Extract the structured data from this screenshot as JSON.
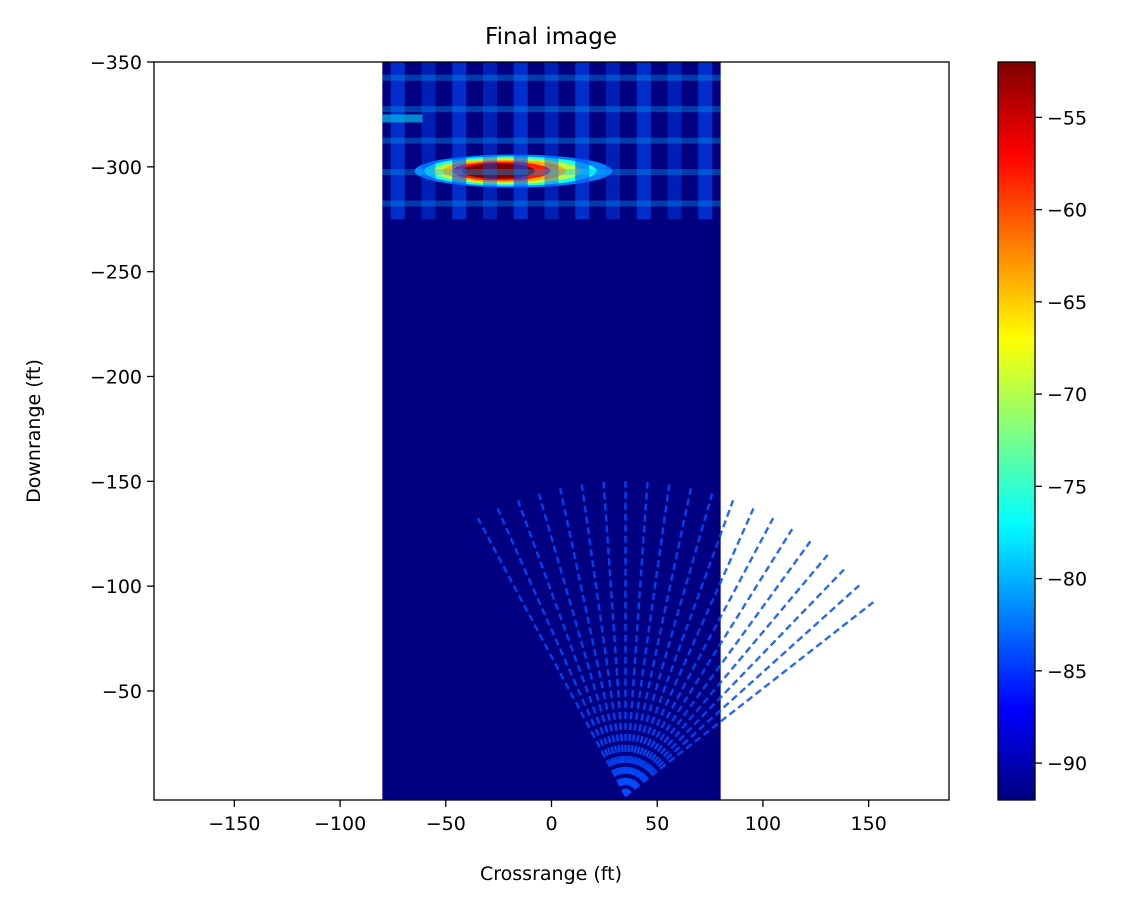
{
  "chart_data": {
    "type": "heatmap",
    "title": "Final image",
    "xlabel": "Crossrange (ft)",
    "ylabel": "Downrange (ft)",
    "xlim": [
      -188,
      188
    ],
    "ylim": [
      -350,
      2
    ],
    "y_inverted": true,
    "xticks": [
      -150,
      -100,
      -50,
      0,
      50,
      100,
      150
    ],
    "yticks": [
      -350,
      -300,
      -250,
      -200,
      -150,
      -100,
      -50
    ],
    "image_extent": {
      "x": [
        -80,
        80
      ],
      "y": [
        -350,
        2
      ]
    },
    "colormap": "jet",
    "colorbar": {
      "range": [
        -92,
        -52
      ],
      "ticks": [
        -90,
        -85,
        -80,
        -75,
        -70,
        -65,
        -60,
        -55
      ]
    },
    "background_level_db": -92,
    "features": [
      {
        "kind": "hot-spot",
        "label": "strong target",
        "x_center": -18,
        "y_center": -298,
        "x_half_width": 42,
        "y_half_height": 6,
        "peak_db": -52
      },
      {
        "kind": "clutter-band",
        "label": "far-range clutter",
        "y_range": [
          -350,
          -275
        ],
        "level_db": -84
      },
      {
        "kind": "fan",
        "label": "near-range sidelobe fan",
        "apex": [
          35,
          0
        ],
        "radius_ft": 150,
        "angle_deg": [
          -118,
          -38
        ],
        "spokes": 21,
        "level_db": -84
      }
    ],
    "grid": false,
    "legend": "none"
  }
}
